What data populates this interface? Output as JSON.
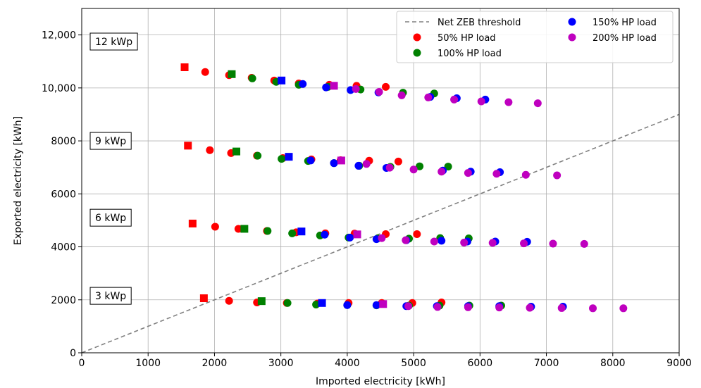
{
  "chart_data": {
    "type": "scatter",
    "title": "",
    "xlabel": "Imported electricity [kWh]",
    "ylabel": "Exported electricity [kWh]",
    "xlim": [
      0,
      9000
    ],
    "ylim": [
      0,
      13000
    ],
    "xticks": [
      0,
      1000,
      2000,
      3000,
      4000,
      5000,
      6000,
      7000,
      8000,
      9000
    ],
    "xtick_labels": [
      "0",
      "1000",
      "2000",
      "3000",
      "4000",
      "5000",
      "6000",
      "7000",
      "8000",
      "9000"
    ],
    "yticks": [
      0,
      2000,
      4000,
      6000,
      8000,
      10000,
      12000
    ],
    "ytick_labels": [
      "0",
      "2000",
      "4000",
      "6000",
      "8000",
      "10,000",
      "12,000"
    ],
    "grid": true,
    "legend_position": "top-right",
    "threshold": {
      "name": "Net ZEB threshold",
      "x": [
        0,
        9000
      ],
      "y": [
        0,
        9000
      ],
      "color": "#808080",
      "style": "dashed"
    },
    "pv_labels": [
      {
        "text": "12 kWp",
        "y": 11750
      },
      {
        "text": "9 kWp",
        "y": 8000
      },
      {
        "text": "6 kWp",
        "y": 5100
      },
      {
        "text": "3 kWp",
        "y": 2150
      }
    ],
    "series": [
      {
        "name": "50% HP load",
        "color": "#ff0000",
        "square_points": [
          [
            1550,
            10780
          ],
          [
            1600,
            7820
          ],
          [
            1670,
            4880
          ],
          [
            1840,
            2060
          ]
        ],
        "points": [
          [
            1860,
            10600
          ],
          [
            2220,
            10480
          ],
          [
            2560,
            10380
          ],
          [
            2900,
            10280
          ],
          [
            3270,
            10170
          ],
          [
            3730,
            10120
          ],
          [
            4140,
            10080
          ],
          [
            4580,
            10040
          ],
          [
            1930,
            7650
          ],
          [
            2250,
            7540
          ],
          [
            2640,
            7440
          ],
          [
            3030,
            7350
          ],
          [
            3460,
            7300
          ],
          [
            3900,
            7270
          ],
          [
            4330,
            7250
          ],
          [
            4770,
            7220
          ],
          [
            2010,
            4760
          ],
          [
            2360,
            4680
          ],
          [
            2790,
            4600
          ],
          [
            3230,
            4550
          ],
          [
            3670,
            4510
          ],
          [
            4110,
            4500
          ],
          [
            4580,
            4480
          ],
          [
            5050,
            4480
          ],
          [
            2220,
            1960
          ],
          [
            2640,
            1900
          ],
          [
            3090,
            1880
          ],
          [
            3550,
            1860
          ],
          [
            4020,
            1880
          ],
          [
            4520,
            1880
          ],
          [
            4980,
            1880
          ],
          [
            5420,
            1900
          ]
        ]
      },
      {
        "name": "100% HP load",
        "color": "#008000",
        "square_points": [
          [
            2260,
            10520
          ],
          [
            2330,
            7600
          ],
          [
            2450,
            4680
          ],
          [
            2710,
            1950
          ]
        ],
        "points": [
          [
            2570,
            10360
          ],
          [
            2930,
            10230
          ],
          [
            3270,
            10120
          ],
          [
            3710,
            10040
          ],
          [
            4200,
            9940
          ],
          [
            4840,
            9820
          ],
          [
            5310,
            9790
          ],
          [
            2650,
            7440
          ],
          [
            3010,
            7320
          ],
          [
            3410,
            7240
          ],
          [
            3800,
            7160
          ],
          [
            4180,
            7060
          ],
          [
            4650,
            7020
          ],
          [
            5090,
            7040
          ],
          [
            5520,
            7030
          ],
          [
            2800,
            4600
          ],
          [
            3170,
            4510
          ],
          [
            3590,
            4430
          ],
          [
            4020,
            4350
          ],
          [
            4460,
            4320
          ],
          [
            4930,
            4310
          ],
          [
            5400,
            4330
          ],
          [
            5830,
            4320
          ],
          [
            3100,
            1880
          ],
          [
            3530,
            1820
          ],
          [
            4000,
            1800
          ],
          [
            4440,
            1790
          ],
          [
            4930,
            1780
          ],
          [
            5390,
            1780
          ],
          [
            5840,
            1780
          ],
          [
            6320,
            1780
          ]
        ]
      },
      {
        "name": "150% HP load",
        "color": "#0000ff",
        "square_points": [
          [
            3010,
            10280
          ],
          [
            3120,
            7400
          ],
          [
            3310,
            4580
          ],
          [
            3620,
            1880
          ]
        ],
        "points": [
          [
            3330,
            10150
          ],
          [
            3680,
            10020
          ],
          [
            4050,
            9920
          ],
          [
            4470,
            9830
          ],
          [
            5250,
            9660
          ],
          [
            5650,
            9610
          ],
          [
            6080,
            9560
          ],
          [
            3450,
            7260
          ],
          [
            3800,
            7160
          ],
          [
            4170,
            7060
          ],
          [
            4590,
            6980
          ],
          [
            5440,
            6880
          ],
          [
            5860,
            6840
          ],
          [
            6300,
            6820
          ],
          [
            3660,
            4460
          ],
          [
            4040,
            4350
          ],
          [
            4440,
            4290
          ],
          [
            4890,
            4250
          ],
          [
            5420,
            4230
          ],
          [
            5810,
            4200
          ],
          [
            6230,
            4200
          ],
          [
            6710,
            4190
          ],
          [
            4000,
            1800
          ],
          [
            4440,
            1800
          ],
          [
            4890,
            1760
          ],
          [
            5350,
            1760
          ],
          [
            5820,
            1760
          ],
          [
            6290,
            1760
          ],
          [
            6770,
            1740
          ],
          [
            7250,
            1740
          ]
        ]
      },
      {
        "name": "200% HP load",
        "color": "#bf00bf",
        "square_points": [
          [
            3800,
            10080
          ],
          [
            3910,
            7260
          ],
          [
            4150,
            4470
          ],
          [
            4540,
            1840
          ]
        ],
        "points": [
          [
            4130,
            9960
          ],
          [
            4480,
            9850
          ],
          [
            4820,
            9720
          ],
          [
            5220,
            9640
          ],
          [
            5610,
            9560
          ],
          [
            6020,
            9490
          ],
          [
            6430,
            9460
          ],
          [
            6870,
            9420
          ],
          [
            4290,
            7130
          ],
          [
            4640,
            6990
          ],
          [
            5000,
            6920
          ],
          [
            5420,
            6840
          ],
          [
            5820,
            6790
          ],
          [
            6250,
            6760
          ],
          [
            6690,
            6720
          ],
          [
            7160,
            6700
          ],
          [
            4520,
            4330
          ],
          [
            4880,
            4250
          ],
          [
            5310,
            4200
          ],
          [
            5760,
            4160
          ],
          [
            6190,
            4150
          ],
          [
            6660,
            4130
          ],
          [
            7100,
            4120
          ],
          [
            7570,
            4110
          ],
          [
            4920,
            1760
          ],
          [
            5360,
            1730
          ],
          [
            5820,
            1720
          ],
          [
            6290,
            1710
          ],
          [
            6750,
            1700
          ],
          [
            7230,
            1690
          ],
          [
            7700,
            1680
          ],
          [
            8160,
            1680
          ]
        ]
      }
    ]
  }
}
